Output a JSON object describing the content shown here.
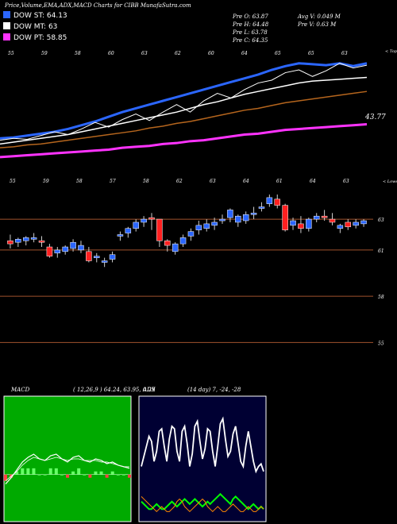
{
  "header": {
    "title": "Price,Volume,EMA,ADX,MACD Charts for CIBB MunafaSutra.com",
    "legend": [
      {
        "label": "DOW ST: 64.13",
        "color": "#2b66ff"
      },
      {
        "label": "DOW MT: 63",
        "color": "#ffffff"
      },
      {
        "label": "DOW PT: 58.85",
        "color": "#ff33ff"
      }
    ],
    "stats_left": [
      "Pre O: 63.87",
      "Pre H: 64.48",
      "Pre L: 63.78",
      "Pre C: 64.35"
    ],
    "stats_right": [
      "Avg V: 0.049 M",
      "Pre V: 0.63 M"
    ]
  },
  "colors": {
    "up": "#2b66ff",
    "down": "#ff2020",
    "ema_white": "#ffffff",
    "ema_blue": "#2b66ff",
    "ema_brown": "#b5651d",
    "ema_pink": "#ff33ff",
    "macd_bg": "#00aa00",
    "adx_bg": "#000033",
    "grid": "#a0522d"
  },
  "chart_data": [
    {
      "type": "line",
      "name": "EMA panel",
      "top_tick_labels": [
        "55",
        "59",
        "58",
        "60",
        "63",
        "62",
        "60",
        "64",
        "65",
        "65",
        "63"
      ],
      "corner_label": "< Topu",
      "last_value_label": "43.77",
      "series": [
        {
          "name": "DOW ST",
          "color": "#2b66ff",
          "values": [
            57.6,
            57.7,
            57.9,
            58.1,
            58.3,
            58.6,
            59.0,
            59.4,
            59.9,
            60.4,
            60.8,
            61.2,
            61.6,
            62.0,
            62.4,
            62.8,
            63.2,
            63.6,
            64.0,
            64.4,
            64.9,
            65.3,
            65.6,
            65.5,
            65.4,
            65.6,
            65.3,
            65.6
          ]
        },
        {
          "name": "DOW MT",
          "color": "#ffffff",
          "values": [
            57.0,
            57.2,
            57.4,
            57.6,
            57.8,
            58.0,
            58.3,
            58.6,
            58.9,
            59.2,
            59.5,
            59.8,
            60.1,
            60.4,
            60.8,
            61.2,
            61.5,
            61.9,
            62.3,
            62.6,
            62.9,
            63.2,
            63.5,
            63.7,
            63.8,
            63.9,
            64.0,
            64.1
          ]
        },
        {
          "name": "EMA brown",
          "color": "#b5651d",
          "values": [
            56.6,
            56.7,
            56.9,
            57.0,
            57.2,
            57.4,
            57.6,
            57.8,
            58.0,
            58.2,
            58.4,
            58.7,
            58.9,
            59.2,
            59.4,
            59.7,
            60.0,
            60.3,
            60.6,
            60.8,
            61.1,
            61.4,
            61.6,
            61.8,
            62.0,
            62.2,
            62.4,
            62.6
          ]
        },
        {
          "name": "DOW PT",
          "color": "#ff33ff",
          "values": [
            55.6,
            55.7,
            55.8,
            55.9,
            56.0,
            56.1,
            56.2,
            56.3,
            56.4,
            56.6,
            56.7,
            56.8,
            57.0,
            57.1,
            57.3,
            57.4,
            57.6,
            57.8,
            58.0,
            58.1,
            58.3,
            58.5,
            58.6,
            58.7,
            58.8,
            58.9,
            59.0,
            59.1
          ]
        }
      ],
      "price": [
        57.4,
        57.6,
        57.5,
        57.9,
        58.3,
        58.0,
        58.6,
        59.3,
        58.8,
        59.6,
        60.2,
        59.5,
        60.4,
        61.2,
        60.4,
        61.6,
        62.4,
        61.9,
        62.8,
        63.5,
        63.8,
        64.6,
        64.9,
        64.2,
        64.8,
        65.6,
        65.1,
        65.4
      ],
      "ylim": [
        55,
        66
      ]
    },
    {
      "type": "candlestick",
      "name": "Price panel",
      "top_tick_labels": [
        "55",
        "59",
        "58",
        "57",
        "58",
        "62",
        "63",
        "64",
        "61",
        "64",
        "63"
      ],
      "corner_label": "< Lowes",
      "y_tick_labels": [
        "63",
        "61",
        "58",
        "55"
      ],
      "ylim": [
        54.3,
        64.6
      ],
      "candles": [
        {
          "o": 61.6,
          "h": 62.0,
          "l": 61.1,
          "c": 61.4,
          "up": false
        },
        {
          "o": 61.5,
          "h": 61.8,
          "l": 61.2,
          "c": 61.7,
          "up": true
        },
        {
          "o": 61.6,
          "h": 61.9,
          "l": 61.3,
          "c": 61.8,
          "up": true
        },
        {
          "o": 61.7,
          "h": 62.1,
          "l": 61.5,
          "c": 61.8,
          "up": true
        },
        {
          "o": 61.6,
          "h": 61.9,
          "l": 61.2,
          "c": 61.5,
          "up": false
        },
        {
          "o": 61.2,
          "h": 61.4,
          "l": 60.5,
          "c": 60.6,
          "up": false
        },
        {
          "o": 60.8,
          "h": 61.2,
          "l": 60.5,
          "c": 61.0,
          "up": true
        },
        {
          "o": 60.9,
          "h": 61.3,
          "l": 60.7,
          "c": 61.2,
          "up": true
        },
        {
          "o": 61.1,
          "h": 61.7,
          "l": 60.9,
          "c": 61.5,
          "up": true
        },
        {
          "o": 61.0,
          "h": 61.6,
          "l": 60.8,
          "c": 61.3,
          "up": true
        },
        {
          "o": 60.9,
          "h": 61.2,
          "l": 60.2,
          "c": 60.3,
          "up": false
        },
        {
          "o": 60.5,
          "h": 60.8,
          "l": 60.2,
          "c": 60.6,
          "up": true
        },
        {
          "o": 60.2,
          "h": 60.5,
          "l": 59.9,
          "c": 60.3,
          "up": true
        },
        {
          "o": 60.4,
          "h": 60.9,
          "l": 60.2,
          "c": 60.7,
          "up": true
        },
        {
          "o": 61.9,
          "h": 62.2,
          "l": 61.6,
          "c": 62.0,
          "up": true
        },
        {
          "o": 62.1,
          "h": 62.5,
          "l": 61.8,
          "c": 62.4,
          "up": true
        },
        {
          "o": 62.4,
          "h": 63.0,
          "l": 62.2,
          "c": 62.8,
          "up": true
        },
        {
          "o": 62.8,
          "h": 63.2,
          "l": 62.5,
          "c": 63.0,
          "up": true
        },
        {
          "o": 63.1,
          "h": 63.4,
          "l": 62.3,
          "c": 63.0,
          "up": false
        },
        {
          "o": 63.0,
          "h": 63.0,
          "l": 61.2,
          "c": 61.6,
          "up": false
        },
        {
          "o": 61.6,
          "h": 61.7,
          "l": 60.9,
          "c": 61.3,
          "up": false
        },
        {
          "o": 60.9,
          "h": 61.5,
          "l": 60.7,
          "c": 61.4,
          "up": true
        },
        {
          "o": 61.4,
          "h": 62.0,
          "l": 61.2,
          "c": 61.8,
          "up": true
        },
        {
          "o": 61.9,
          "h": 62.4,
          "l": 61.6,
          "c": 62.2,
          "up": true
        },
        {
          "o": 62.3,
          "h": 62.9,
          "l": 62.0,
          "c": 62.6,
          "up": true
        },
        {
          "o": 62.4,
          "h": 63.0,
          "l": 62.2,
          "c": 62.7,
          "up": true
        },
        {
          "o": 62.6,
          "h": 63.1,
          "l": 62.3,
          "c": 62.8,
          "up": true
        },
        {
          "o": 62.9,
          "h": 63.3,
          "l": 62.7,
          "c": 63.0,
          "up": true
        },
        {
          "o": 63.1,
          "h": 63.7,
          "l": 62.8,
          "c": 63.6,
          "up": true
        },
        {
          "o": 62.8,
          "h": 63.3,
          "l": 62.5,
          "c": 63.2,
          "up": true
        },
        {
          "o": 62.9,
          "h": 63.5,
          "l": 62.7,
          "c": 63.3,
          "up": true
        },
        {
          "o": 63.3,
          "h": 63.8,
          "l": 63.0,
          "c": 63.4,
          "up": true
        },
        {
          "o": 63.7,
          "h": 64.1,
          "l": 63.5,
          "c": 63.8,
          "up": true
        },
        {
          "o": 64.0,
          "h": 64.6,
          "l": 63.8,
          "c": 64.4,
          "up": true
        },
        {
          "o": 64.3,
          "h": 64.6,
          "l": 63.7,
          "c": 63.9,
          "up": false
        },
        {
          "o": 63.9,
          "h": 64.0,
          "l": 62.2,
          "c": 62.3,
          "up": false
        },
        {
          "o": 62.6,
          "h": 63.1,
          "l": 62.3,
          "c": 62.9,
          "up": true
        },
        {
          "o": 62.7,
          "h": 63.2,
          "l": 62.1,
          "c": 62.4,
          "up": false
        },
        {
          "o": 62.4,
          "h": 63.1,
          "l": 62.2,
          "c": 63.0,
          "up": true
        },
        {
          "o": 63.0,
          "h": 63.4,
          "l": 62.8,
          "c": 63.2,
          "up": true
        },
        {
          "o": 63.2,
          "h": 63.6,
          "l": 62.9,
          "c": 63.1,
          "up": false
        },
        {
          "o": 63.0,
          "h": 63.4,
          "l": 62.6,
          "c": 62.8,
          "up": false
        },
        {
          "o": 62.4,
          "h": 62.7,
          "l": 62.1,
          "c": 62.6,
          "up": true
        },
        {
          "o": 62.8,
          "h": 63.0,
          "l": 62.3,
          "c": 62.5,
          "up": false
        },
        {
          "o": 62.6,
          "h": 63.0,
          "l": 62.4,
          "c": 62.8,
          "up": true
        },
        {
          "o": 62.7,
          "h": 63.0,
          "l": 62.5,
          "c": 62.9,
          "up": true
        }
      ]
    },
    {
      "type": "line",
      "name": "MACD panel",
      "title": "MACD",
      "params": "( 12,26,9 ) 64.24, 63.95, 0.29",
      "series": [
        {
          "name": "MACD",
          "color": "#ffffff",
          "values": [
            -0.6,
            -0.2,
            0.3,
            0.8,
            1.1,
            1.3,
            1.0,
            0.9,
            1.2,
            1.3,
            1.0,
            0.8,
            1.1,
            1.2,
            0.9,
            0.8,
            1.0,
            0.9,
            0.7,
            0.8,
            0.6,
            0.5,
            0.4
          ]
        },
        {
          "name": "Signal",
          "color": "#ffffff",
          "values": [
            -0.4,
            -0.1,
            0.2,
            0.6,
            0.9,
            1.1,
            1.0,
            0.9,
            1.0,
            1.1,
            1.0,
            0.9,
            1.0,
            1.0,
            0.9,
            0.9,
            0.9,
            0.8,
            0.8,
            0.7,
            0.6,
            0.5,
            0.5
          ]
        }
      ],
      "ylim": [
        -3,
        5
      ]
    },
    {
      "type": "line",
      "name": "ADX panel",
      "title": "ADX",
      "params": "(14 day) 7, -24, -28",
      "series": [
        {
          "name": "ADX",
          "color": "#ffffff",
          "values": [
            22,
            26,
            30,
            34,
            32,
            24,
            28,
            36,
            37,
            30,
            24,
            33,
            38,
            37,
            28,
            24,
            36,
            38,
            31,
            22,
            27,
            38,
            40,
            32,
            25,
            29,
            37,
            36,
            28,
            22,
            30,
            39,
            41,
            33,
            26,
            28,
            35,
            38,
            31,
            24,
            22,
            30,
            36,
            30,
            24,
            20,
            22,
            23,
            20
          ]
        },
        {
          "name": "+DI",
          "color": "#00ff00",
          "values": [
            8,
            7,
            6,
            5,
            5,
            6,
            7,
            6,
            5,
            5,
            6,
            7,
            8,
            7,
            6,
            7,
            8,
            9,
            8,
            7,
            8,
            9,
            8,
            7,
            6,
            7,
            8,
            7,
            8,
            9,
            10,
            11,
            10,
            9,
            8,
            7,
            9,
            10,
            9,
            8,
            7,
            6,
            5,
            6,
            7,
            6,
            5,
            6,
            5
          ]
        },
        {
          "name": "-DI",
          "color": "#ff8800",
          "values": [
            10,
            9,
            8,
            7,
            6,
            5,
            4,
            5,
            6,
            5,
            4,
            4,
            5,
            6,
            8,
            9,
            8,
            6,
            5,
            4,
            5,
            6,
            7,
            8,
            9,
            8,
            6,
            5,
            4,
            5,
            6,
            5,
            4,
            4,
            5,
            6,
            7,
            6,
            5,
            4,
            4,
            5,
            6,
            5,
            4,
            4,
            5,
            6,
            5
          ]
        }
      ],
      "ylim": [
        0,
        50
      ]
    }
  ]
}
